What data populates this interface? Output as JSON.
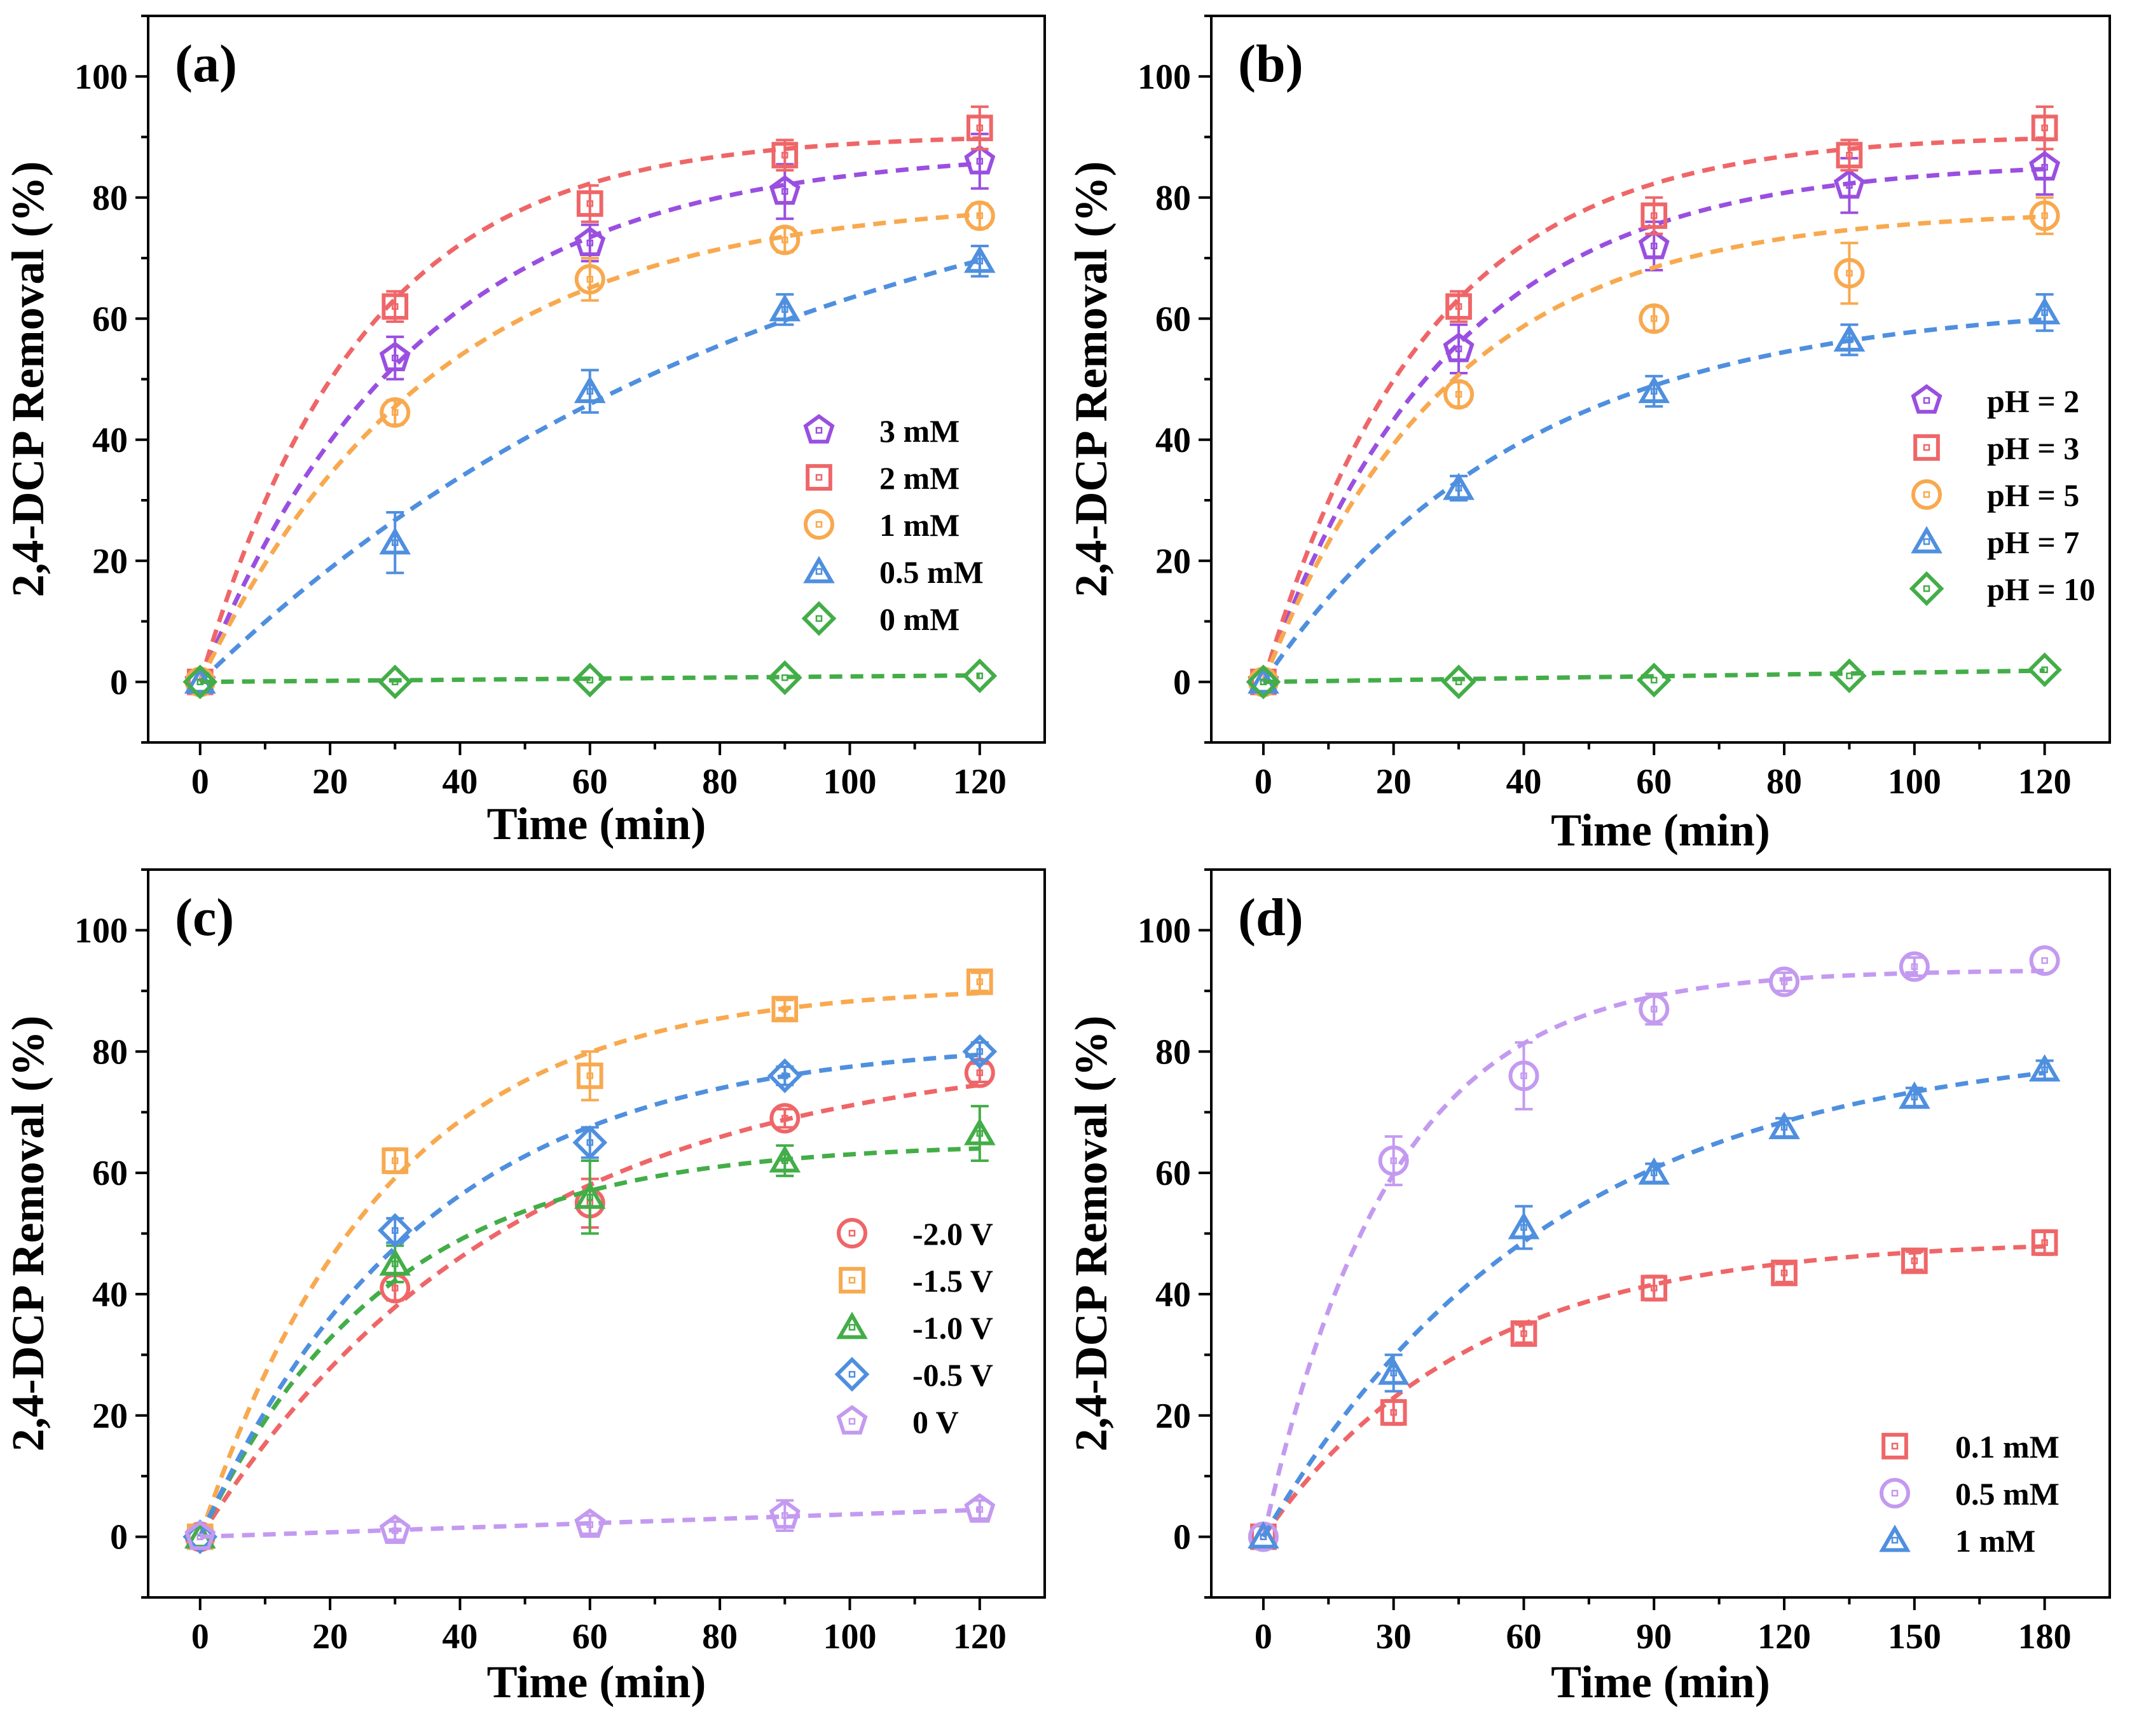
{
  "colors": {
    "purple": "#9a4fe0",
    "red": "#ef6668",
    "orange": "#f8a94f",
    "blue": "#4f8fdf",
    "green": "#43ad48",
    "lavender": "#c49af0",
    "axis": "#000000"
  },
  "chart_data": [
    {
      "panel": "(a)",
      "type": "scatter",
      "xlabel": "Time (min)",
      "ylabel": "2,4-DCP Removal (%)",
      "xlim": [
        -8,
        130
      ],
      "ylim": [
        -10,
        110
      ],
      "xticks": [
        "0",
        "20",
        "40",
        "60",
        "80",
        "100",
        "120"
      ],
      "xtick_values": [
        0,
        20,
        40,
        60,
        80,
        100,
        120
      ],
      "yticks": [
        "0",
        "20",
        "40",
        "60",
        "80",
        "100"
      ],
      "ytick_values": [
        0,
        20,
        40,
        60,
        80,
        100
      ],
      "legend_position": "center-right",
      "series": [
        {
          "name": "3 mM",
          "marker": "pentagon",
          "color": "#9a4fe0",
          "x": [
            0,
            30,
            60,
            90,
            120
          ],
          "y": [
            0,
            53.5,
            72.5,
            81,
            86
          ],
          "err": [
            1,
            3.5,
            3,
            4.5,
            4.5
          ],
          "fit": {
            "A": 88,
            "k": 0.03
          }
        },
        {
          "name": "2 mM",
          "marker": "square",
          "color": "#ef6668",
          "x": [
            0,
            30,
            60,
            90,
            120
          ],
          "y": [
            0,
            62,
            79,
            87,
            91.5
          ],
          "err": [
            1,
            2.5,
            3,
            2.5,
            3.5
          ],
          "fit": {
            "A": 90.5,
            "k": 0.04
          }
        },
        {
          "name": "1 mM",
          "marker": "circle",
          "color": "#f8a94f",
          "x": [
            0,
            30,
            60,
            90,
            120
          ],
          "y": [
            0,
            44.5,
            66.5,
            73,
            77
          ],
          "err": [
            1,
            2,
            3.5,
            2,
            2
          ],
          "fit": {
            "A": 80,
            "k": 0.028
          }
        },
        {
          "name": "0.5 mM",
          "marker": "triangle",
          "color": "#4f8fdf",
          "x": [
            0,
            30,
            60,
            90,
            120
          ],
          "y": [
            0,
            23,
            48,
            61.5,
            69.5
          ],
          "err": [
            1,
            5,
            3.5,
            2.5,
            2.5
          ],
          "fit": {
            "A": 95,
            "k": 0.011
          }
        },
        {
          "name": "0 mM",
          "marker": "diamond",
          "color": "#43ad48",
          "x": [
            0,
            30,
            60,
            90,
            120
          ],
          "y": [
            0,
            0,
            0.3,
            0.7,
            1
          ],
          "err": [
            0.5,
            0.5,
            0.5,
            0.5,
            0.5
          ],
          "fit": {
            "linear": 0.009
          }
        }
      ]
    },
    {
      "panel": "(b)",
      "type": "scatter",
      "xlabel": "Time (min)",
      "ylabel": "2,4-DCP Removal (%)",
      "xlim": [
        -8,
        130
      ],
      "ylim": [
        -10,
        110
      ],
      "xticks": [
        "0",
        "20",
        "40",
        "60",
        "80",
        "100",
        "120"
      ],
      "xtick_values": [
        0,
        20,
        40,
        60,
        80,
        100,
        120
      ],
      "yticks": [
        "0",
        "20",
        "40",
        "60",
        "80",
        "100"
      ],
      "ytick_values": [
        0,
        20,
        40,
        60,
        80,
        100
      ],
      "legend_position": "center-right",
      "series": [
        {
          "name": "pH = 2",
          "marker": "pentagon",
          "color": "#9a4fe0",
          "x": [
            0,
            30,
            60,
            90,
            120
          ],
          "y": [
            0,
            55,
            72,
            82,
            85
          ],
          "err": [
            1,
            4,
            4,
            4.5,
            4.5
          ],
          "fit": {
            "A": 86,
            "k": 0.035
          }
        },
        {
          "name": "pH = 3",
          "marker": "square",
          "color": "#ef6668",
          "x": [
            0,
            30,
            60,
            90,
            120
          ],
          "y": [
            0,
            62,
            77,
            87,
            91.5
          ],
          "err": [
            1,
            2.5,
            3,
            2.5,
            3.5
          ],
          "fit": {
            "A": 90.5,
            "k": 0.04
          }
        },
        {
          "name": "pH = 5",
          "marker": "circle",
          "color": "#f8a94f",
          "x": [
            0,
            30,
            60,
            90,
            120
          ],
          "y": [
            0,
            47.5,
            60,
            67.5,
            77
          ],
          "err": [
            1,
            2,
            2,
            5,
            3
          ],
          "fit": {
            "A": 78,
            "k": 0.035
          }
        },
        {
          "name": "pH = 7",
          "marker": "triangle",
          "color": "#4f8fdf",
          "x": [
            0,
            30,
            60,
            90,
            120
          ],
          "y": [
            0,
            32,
            48,
            56.5,
            61
          ],
          "err": [
            1,
            2,
            2.5,
            2.5,
            3
          ],
          "fit": {
            "A": 63,
            "k": 0.025
          }
        },
        {
          "name": "pH = 10",
          "marker": "diamond",
          "color": "#43ad48",
          "x": [
            0,
            30,
            60,
            90,
            120
          ],
          "y": [
            0,
            0,
            0.3,
            1,
            2
          ],
          "err": [
            0.5,
            0.5,
            0.5,
            0.5,
            0.5
          ],
          "fit": {
            "linear": 0.0155
          }
        }
      ]
    },
    {
      "panel": "(c)",
      "type": "scatter",
      "xlabel": "Time (min)",
      "ylabel": "2,4-DCP Removal (%)",
      "xlim": [
        -8,
        130
      ],
      "ylim": [
        -10,
        110
      ],
      "xticks": [
        "0",
        "20",
        "40",
        "60",
        "80",
        "100",
        "120"
      ],
      "xtick_values": [
        0,
        20,
        40,
        60,
        80,
        100,
        120
      ],
      "yticks": [
        "0",
        "20",
        "40",
        "60",
        "80",
        "100"
      ],
      "ytick_values": [
        0,
        20,
        40,
        60,
        80,
        100
      ],
      "legend_position": "center-right",
      "series": [
        {
          "name": "-2.0 V",
          "marker": "circle",
          "color": "#ef6668",
          "x": [
            0,
            30,
            60,
            90,
            120
          ],
          "y": [
            0,
            41,
            55,
            69,
            76.5
          ],
          "err": [
            1,
            2,
            4,
            1.5,
            1.5
          ],
          "fit": {
            "A": 81,
            "k": 0.021
          }
        },
        {
          "name": "-1.5 V",
          "marker": "square",
          "color": "#f8a94f",
          "x": [
            0,
            30,
            60,
            90,
            120
          ],
          "y": [
            0,
            62,
            76,
            87,
            91.5
          ],
          "err": [
            1,
            2,
            4,
            1.5,
            1.5
          ],
          "fit": {
            "A": 91,
            "k": 0.035
          }
        },
        {
          "name": "-1.0 V",
          "marker": "triangle",
          "color": "#43ad48",
          "x": [
            0,
            30,
            60,
            90,
            120
          ],
          "y": [
            0,
            45,
            56,
            62,
            66.5
          ],
          "err": [
            1,
            3,
            6,
            2.5,
            4.5
          ],
          "fit": {
            "A": 65,
            "k": 0.035
          }
        },
        {
          "name": "-0.5 V",
          "marker": "diamond",
          "color": "#4f8fdf",
          "x": [
            0,
            30,
            60,
            90,
            120
          ],
          "y": [
            0,
            50.5,
            65,
            76,
            80
          ],
          "err": [
            1,
            2,
            2.5,
            1.5,
            1.5
          ],
          "fit": {
            "A": 82,
            "k": 0.029
          }
        },
        {
          "name": "0 V",
          "marker": "pentagon",
          "color": "#c49af0",
          "x": [
            0,
            30,
            60,
            90,
            120
          ],
          "y": [
            0,
            1,
            2,
            3.5,
            4.5
          ],
          "err": [
            0.5,
            1.5,
            1.5,
            2.5,
            1.5
          ],
          "fit": {
            "linear": 0.037
          }
        }
      ]
    },
    {
      "panel": "(d)",
      "type": "scatter",
      "xlabel": "Time (min)",
      "ylabel": "2,4-DCP Removal (%)",
      "xlim": [
        -12,
        195
      ],
      "ylim": [
        -10,
        110
      ],
      "xticks": [
        "0",
        "30",
        "60",
        "90",
        "120",
        "150",
        "180"
      ],
      "xtick_values": [
        0,
        30,
        60,
        90,
        120,
        150,
        180
      ],
      "yticks": [
        "0",
        "20",
        "40",
        "60",
        "80",
        "100"
      ],
      "ytick_values": [
        0,
        20,
        40,
        60,
        80,
        100
      ],
      "legend_position": "bottom-right",
      "series": [
        {
          "name": "0.1 mM",
          "marker": "square",
          "color": "#ef6668",
          "x": [
            0,
            30,
            60,
            90,
            120,
            150,
            180
          ],
          "y": [
            0,
            20.5,
            33.5,
            41,
            43.5,
            45.5,
            48.5
          ],
          "err": [
            1,
            2,
            1.5,
            2,
            1.5,
            1.5,
            2
          ],
          "fit": {
            "A": 49,
            "k": 0.021
          }
        },
        {
          "name": "0.5 mM",
          "marker": "circle",
          "color": "#c49af0",
          "x": [
            0,
            30,
            60,
            90,
            120,
            150,
            180
          ],
          "y": [
            0,
            62,
            76,
            87,
            91.5,
            94,
            95
          ],
          "err": [
            1,
            4,
            5.5,
            2.5,
            1.5,
            1.5,
            1
          ],
          "fit": {
            "A": 93.5,
            "k": 0.034
          }
        },
        {
          "name": "1 mM",
          "marker": "triangle",
          "color": "#4f8fdf",
          "x": [
            0,
            30,
            60,
            90,
            120,
            150,
            180
          ],
          "y": [
            0,
            27,
            51,
            60,
            67.5,
            72.5,
            77
          ],
          "err": [
            1,
            3,
            3.5,
            1.5,
            1.5,
            1.5,
            1.5
          ],
          "fit": {
            "A": 82,
            "k": 0.015
          }
        }
      ]
    }
  ]
}
